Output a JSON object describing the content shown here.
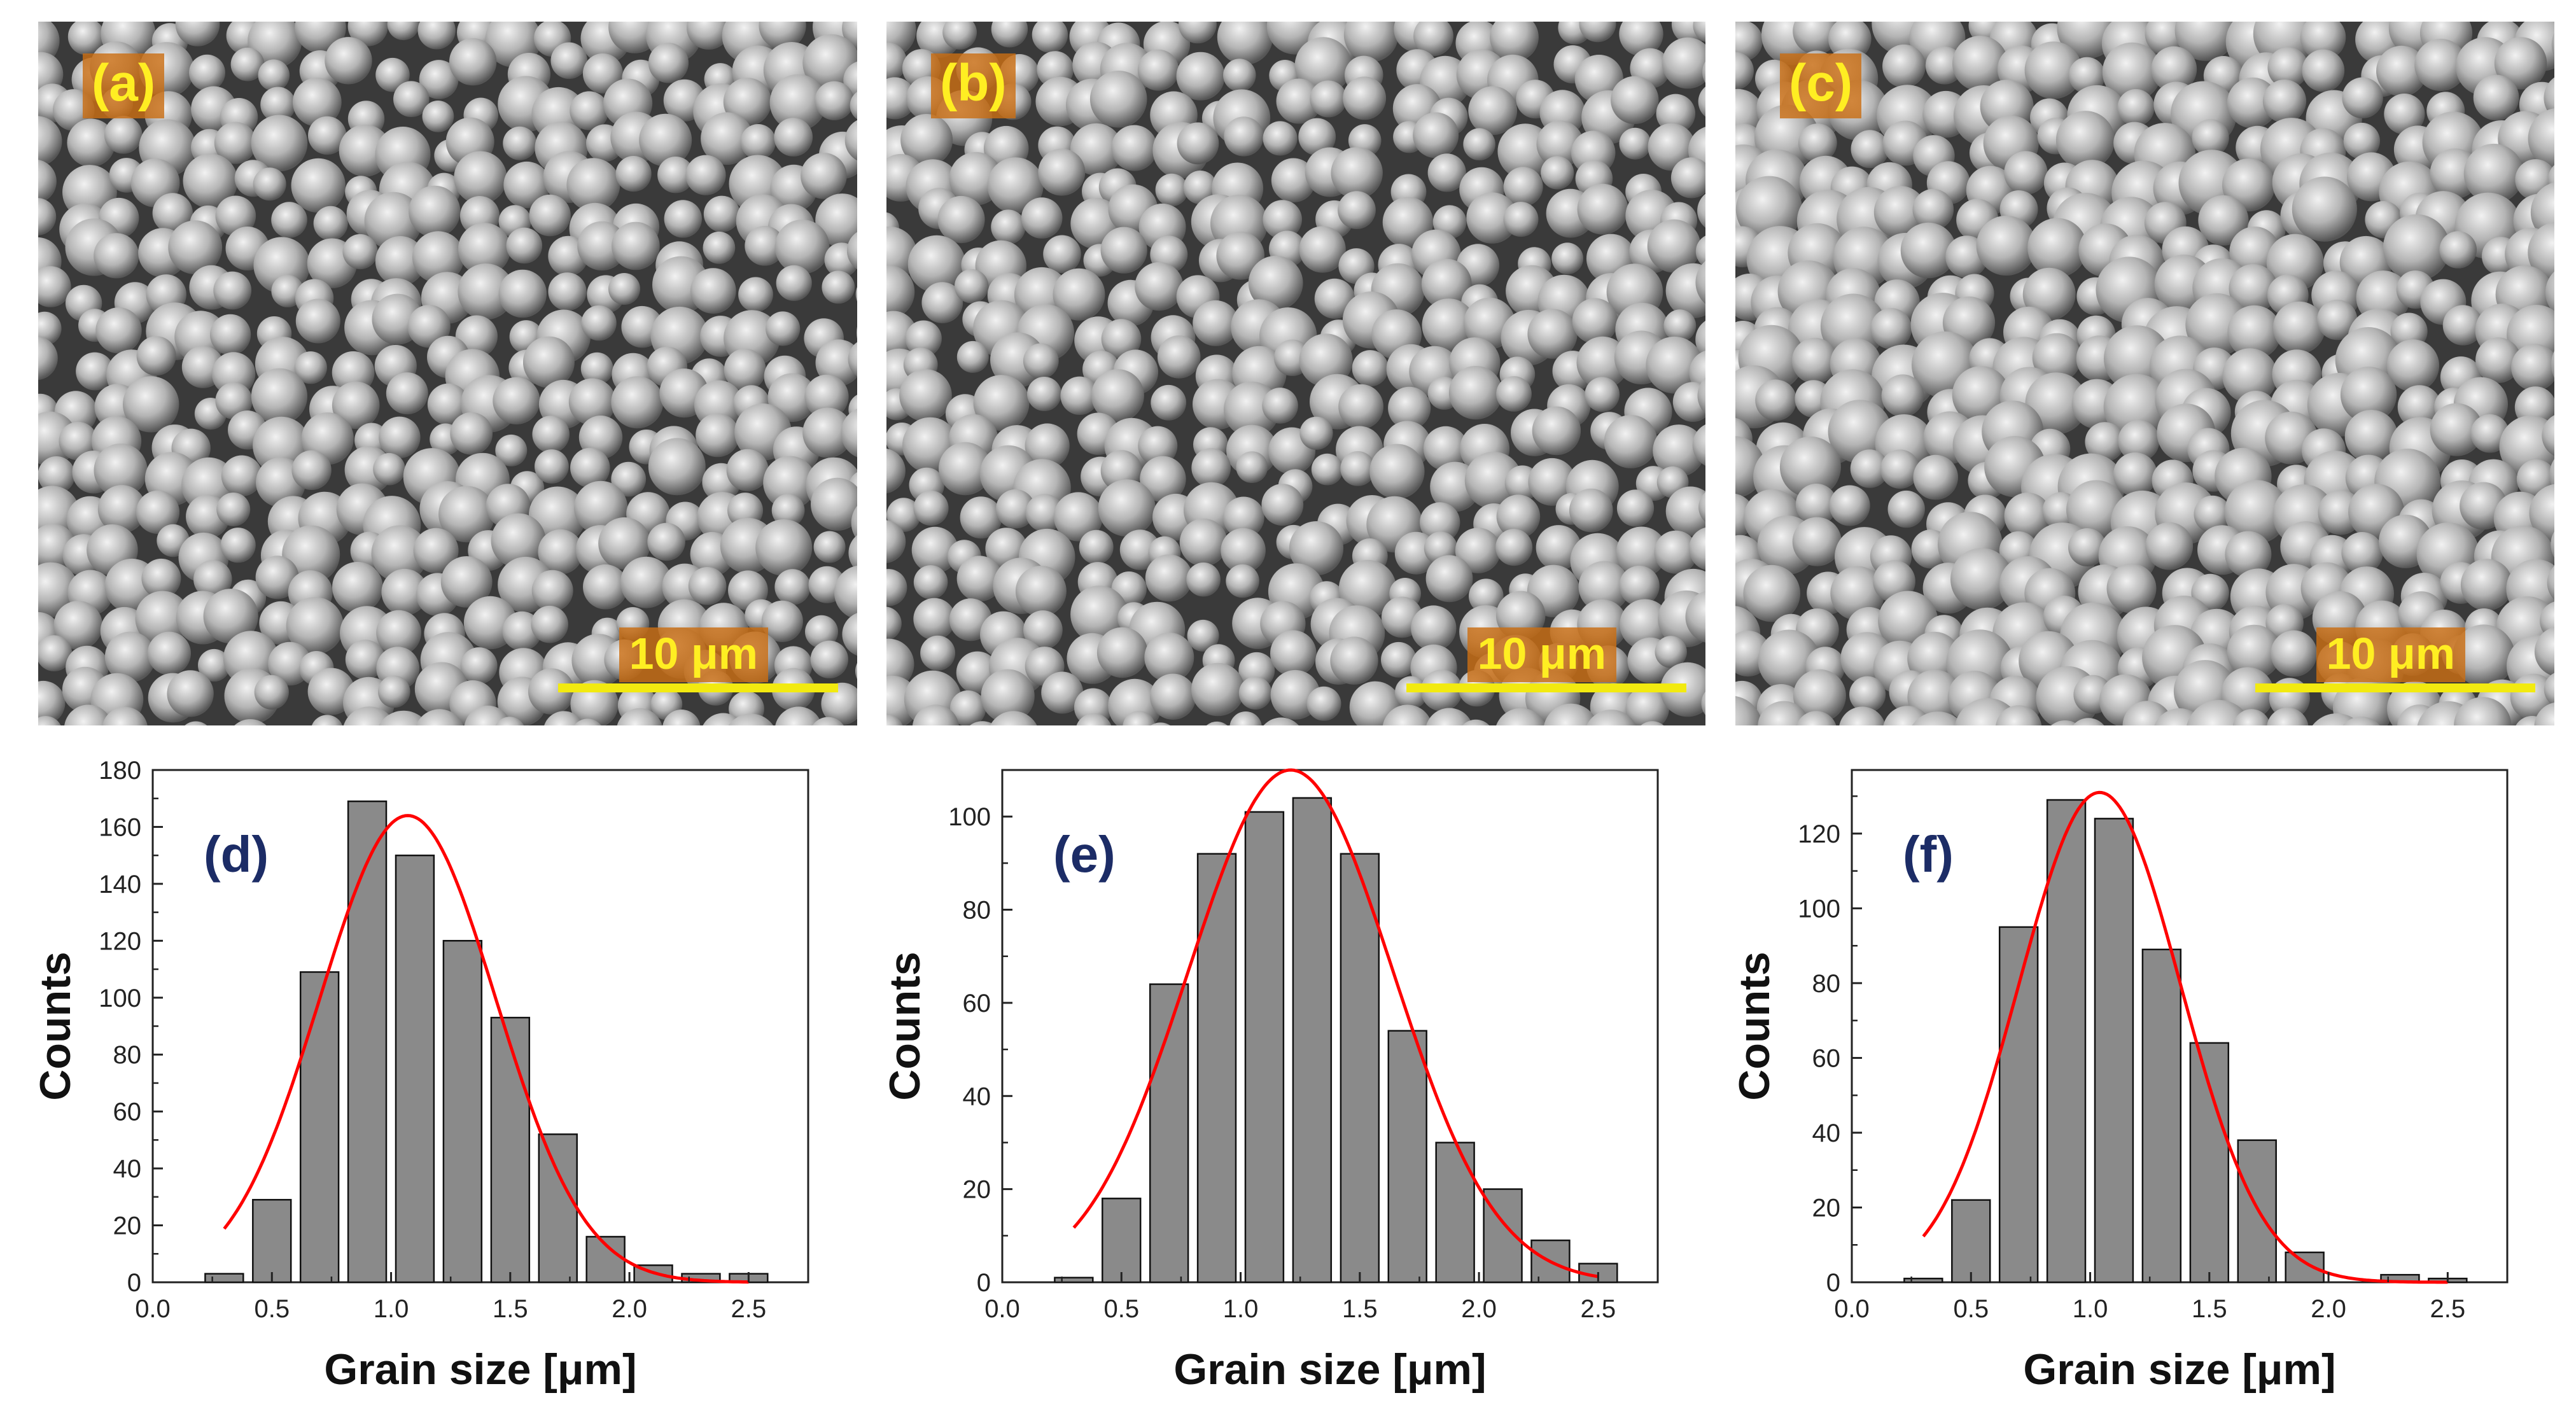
{
  "sem_panels": [
    {
      "label": "(a)",
      "scale_label": "10 μm"
    },
    {
      "label": "(b)",
      "scale_label": "10 μm"
    },
    {
      "label": "(c)",
      "scale_label": "10 μm"
    }
  ],
  "colors": {
    "bar_fill": "#8a8a8a",
    "bar_stroke": "#111111",
    "fit_line": "#ff0000",
    "panel_label_text": "#ffee22",
    "panel_label_bg": "#c96e14",
    "scale_bar": "#f2ea10",
    "hist_label": "#1c2c66"
  },
  "chart_data": [
    {
      "type": "bar",
      "label": "(d)",
      "xlabel": "Grain size [μm]",
      "ylabel": "Counts",
      "xlim": [
        0,
        2.75
      ],
      "ylim": [
        0,
        180
      ],
      "xticks": [
        0.0,
        0.5,
        1.0,
        1.5,
        2.0,
        2.5
      ],
      "xtick_labels": [
        "0.0",
        "0.5",
        "1.0",
        "1.5",
        "2.0",
        "2.5"
      ],
      "yticks": [
        0,
        20,
        40,
        60,
        80,
        100,
        120,
        140,
        160,
        180
      ],
      "ytick_labels": [
        "0",
        "20",
        "40",
        "60",
        "80",
        "100",
        "120",
        "140",
        "160",
        "180"
      ],
      "bin_width": 0.16,
      "x": [
        0.3,
        0.5,
        0.7,
        0.9,
        1.1,
        1.3,
        1.5,
        1.7,
        1.9,
        2.1,
        2.3,
        2.5
      ],
      "values": [
        3,
        29,
        109,
        169,
        150,
        120,
        93,
        52,
        16,
        6,
        3,
        3
      ],
      "fit": {
        "type": "gaussian",
        "amplitude": 164,
        "center": 1.07,
        "sigma": 0.37,
        "x_range": [
          0.3,
          2.5
        ]
      }
    },
    {
      "type": "bar",
      "label": "(e)",
      "xlabel": "Grain size [μm]",
      "ylabel": "Counts",
      "xlim": [
        0,
        2.75
      ],
      "ylim": [
        0,
        110
      ],
      "xticks": [
        0.0,
        0.5,
        1.0,
        1.5,
        2.0,
        2.5
      ],
      "xtick_labels": [
        "0.0",
        "0.5",
        "1.0",
        "1.5",
        "2.0",
        "2.5"
      ],
      "yticks": [
        0,
        20,
        40,
        60,
        80,
        100
      ],
      "ytick_labels": [
        "0",
        "20",
        "40",
        "60",
        "80",
        "100"
      ],
      "bin_width": 0.16,
      "x": [
        0.3,
        0.5,
        0.7,
        0.9,
        1.1,
        1.3,
        1.5,
        1.7,
        1.9,
        2.1,
        2.3,
        2.5
      ],
      "values": [
        1,
        18,
        64,
        92,
        101,
        104,
        92,
        54,
        30,
        20,
        9,
        4
      ],
      "fit": {
        "type": "gaussian",
        "amplitude": 110,
        "center": 1.21,
        "sigma": 0.43,
        "x_range": [
          0.3,
          2.5
        ]
      }
    },
    {
      "type": "bar",
      "label": "(f)",
      "xlabel": "Grain size [μm]",
      "ylabel": "Counts",
      "xlim": [
        0,
        2.75
      ],
      "ylim": [
        0,
        137
      ],
      "xticks": [
        0.0,
        0.5,
        1.0,
        1.5,
        2.0,
        2.5
      ],
      "xtick_labels": [
        "0.0",
        "0.5",
        "1.0",
        "1.5",
        "2.0",
        "2.5"
      ],
      "yticks": [
        0,
        20,
        40,
        60,
        80,
        100,
        120
      ],
      "ytick_labels": [
        "0",
        "20",
        "40",
        "60",
        "80",
        "100",
        "120"
      ],
      "bin_width": 0.16,
      "x": [
        0.3,
        0.5,
        0.7,
        0.9,
        1.1,
        1.3,
        1.5,
        1.7,
        1.9,
        2.1,
        2.3,
        2.5
      ],
      "values": [
        1,
        22,
        95,
        129,
        124,
        89,
        64,
        38,
        8,
        0,
        2,
        1
      ],
      "fit": {
        "type": "gaussian",
        "amplitude": 131,
        "center": 1.04,
        "sigma": 0.34,
        "x_range": [
          0.3,
          2.5
        ]
      }
    }
  ]
}
